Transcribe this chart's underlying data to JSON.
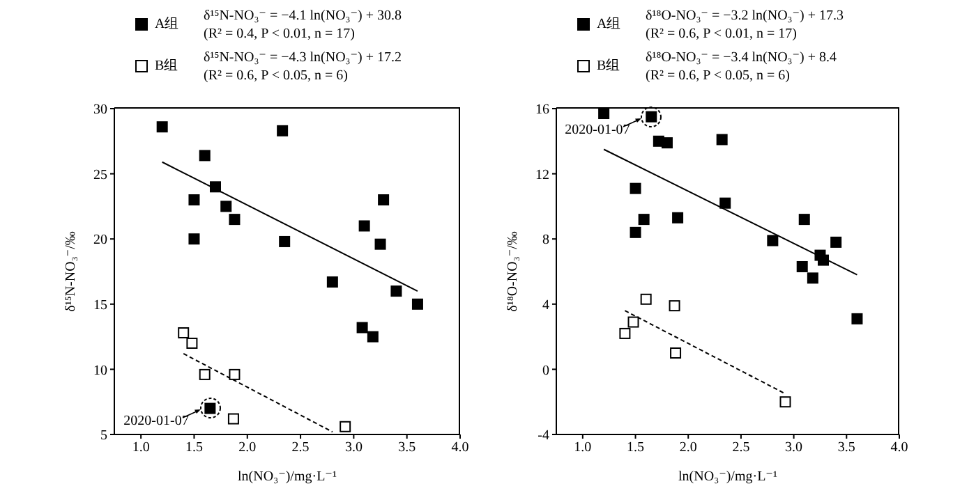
{
  "chart_data": [
    {
      "type": "scatter",
      "xlabel": "ln(NO₃⁻)/mg·L⁻¹",
      "ylabel": "δ¹⁵N-NO₃⁻/‰",
      "xlim": [
        0.75,
        4.0
      ],
      "ylim": [
        5,
        30
      ],
      "xticks": [
        {
          "value": 1,
          "label": "1.0"
        },
        {
          "value": 1.5,
          "label": "1.5"
        },
        {
          "value": 2,
          "label": "2.0"
        },
        {
          "value": 2.5,
          "label": "2.5"
        },
        {
          "value": 3,
          "label": "3.0"
        },
        {
          "value": 3.5,
          "label": "3.5"
        },
        {
          "value": 4,
          "label": "4.0"
        }
      ],
      "yticks": [
        5,
        10,
        15,
        20,
        25,
        30
      ],
      "legend": "top",
      "series": [
        {
          "name": "A组",
          "color": "#000000",
          "marker": "square",
          "x": [
            1.2,
            1.6,
            1.5,
            1.7,
            1.8,
            1.88,
            1.5,
            2.33,
            2.35,
            2.8,
            3.08,
            3.18,
            3.1,
            3.25,
            3.28,
            3.4,
            3.6
          ],
          "values": [
            28.6,
            26.4,
            23,
            24,
            22.5,
            21.5,
            20,
            28.3,
            19.8,
            16.7,
            13.2,
            12.5,
            21,
            19.6,
            23,
            16,
            15
          ]
        },
        {
          "name": "B组",
          "color": "#ffffff",
          "marker": "square",
          "x": [
            1.4,
            1.48,
            1.6,
            1.88,
            1.87,
            2.92
          ],
          "values": [
            12.8,
            12,
            9.6,
            9.6,
            6.2,
            5.6
          ]
        },
        {
          "color": "#000000",
          "marker": "square",
          "x": [
            1.65
          ],
          "values": [
            7
          ]
        },
        {
          "type": "line",
          "color": "#000000",
          "marker": "none",
          "line_style": "solid",
          "x": [
            1.2,
            3.6
          ],
          "values": [
            25.9,
            16
          ]
        },
        {
          "type": "line",
          "color": "#000000",
          "marker": "none",
          "line_style": "dashed",
          "x": [
            1.4,
            2.8
          ],
          "values": [
            11.2,
            5.2
          ]
        }
      ],
      "annotations": [
        "δ¹⁵N-NO₃⁻ = −4.1 ln(NO₃⁻) + 30.8",
        "(R² = 0.4, P < 0.01, n = 17)",
        "δ¹⁵N-NO₃⁻ = −4.3 ln(NO₃⁻) + 17.2",
        "(R² = 0.6, P < 0.05, n = 6)",
        {
          "text": "2020-01-07",
          "x": 1.65,
          "y": 7
        }
      ]
    },
    {
      "type": "scatter",
      "xlabel": "ln(NO₃⁻)/mg·L⁻¹",
      "ylabel": "δ¹⁸O-NO₃⁻/‰",
      "xlim": [
        0.75,
        4.0
      ],
      "ylim": [
        -4,
        16
      ],
      "xticks": [
        {
          "value": 1,
          "label": "1.0"
        },
        {
          "value": 1.5,
          "label": "1.5"
        },
        {
          "value": 2,
          "label": "2.0"
        },
        {
          "value": 2.5,
          "label": "2.5"
        },
        {
          "value": 3,
          "label": "3.0"
        },
        {
          "value": 3.5,
          "label": "3.5"
        },
        {
          "value": 4,
          "label": "4.0"
        }
      ],
      "yticks": [
        -4,
        0,
        4,
        8,
        12,
        16
      ],
      "legend": "top",
      "series": [
        {
          "name": "A组",
          "color": "#000000",
          "marker": "square",
          "x": [
            1.2,
            1.5,
            1.5,
            1.58,
            1.72,
            1.8,
            1.9,
            2.32,
            2.35,
            2.8,
            3.08,
            3.1,
            3.18,
            3.25,
            3.28,
            3.4,
            3.6
          ],
          "values": [
            15.7,
            11.1,
            8.4,
            9.2,
            14,
            13.9,
            9.3,
            14.1,
            10.2,
            7.9,
            6.3,
            9.2,
            5.6,
            7,
            6.7,
            7.8,
            3.1
          ]
        },
        {
          "name": "B组",
          "color": "#ffffff",
          "marker": "square",
          "x": [
            1.4,
            1.48,
            1.6,
            1.87,
            1.88,
            2.92
          ],
          "values": [
            2.2,
            2.9,
            4.3,
            3.9,
            1,
            -2
          ]
        },
        {
          "color": "#000000",
          "marker": "square",
          "x": [
            1.65
          ],
          "values": [
            15.5
          ]
        },
        {
          "type": "line",
          "color": "#000000",
          "marker": "none",
          "line_style": "solid",
          "x": [
            1.2,
            3.6
          ],
          "values": [
            13.5,
            5.8
          ]
        },
        {
          "type": "line",
          "color": "#000000",
          "marker": "none",
          "line_style": "dashed",
          "x": [
            1.4,
            2.92
          ],
          "values": [
            3.6,
            -1.5
          ]
        }
      ],
      "annotations": [
        "δ¹⁸O-NO₃⁻ = −3.2 ln(NO₃⁻) + 17.3",
        "(R² = 0.6, P < 0.01, n = 17)",
        "δ¹⁸O-NO₃⁻ = −3.4 ln(NO₃⁻) + 8.4",
        "(R² = 0.6, P < 0.05, n = 6)",
        {
          "text": "2020-01-07",
          "x": 1.65,
          "y": 15.5
        }
      ]
    }
  ]
}
